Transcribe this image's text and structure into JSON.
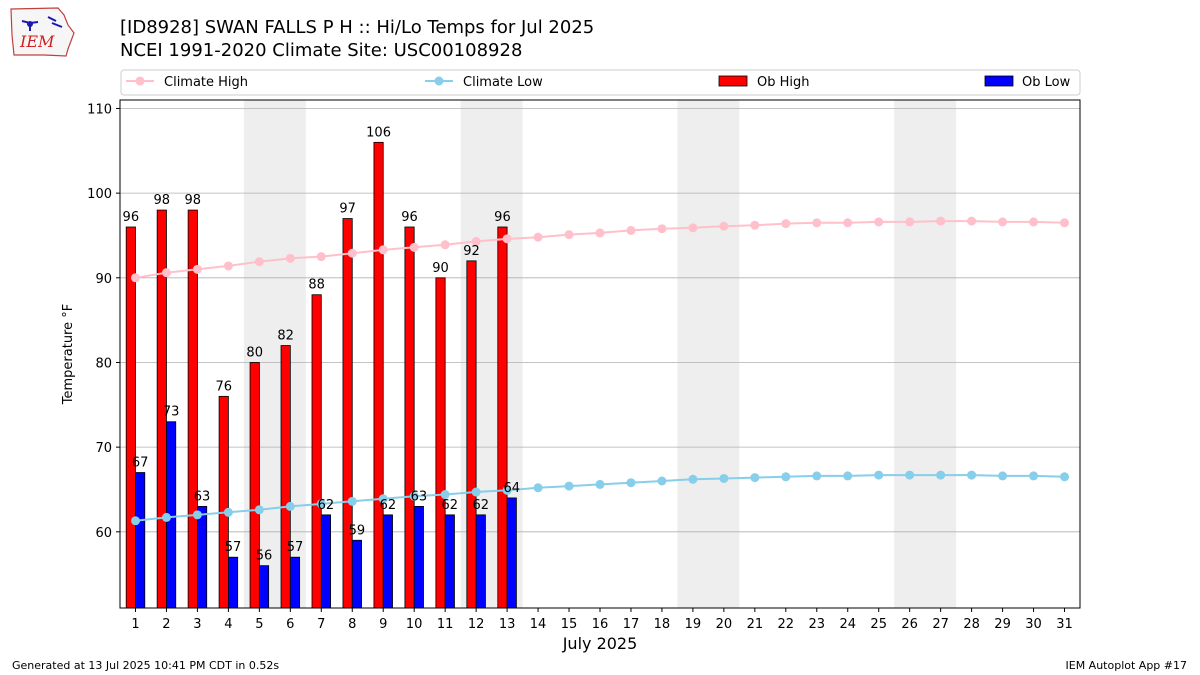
{
  "header": {
    "title_line1": "[ID8928] SWAN FALLS P H :: Hi/Lo Temps for Jul 2025",
    "title_line2": "NCEI 1991-2020 Climate Site: USC00108928",
    "logo_text": "IEM"
  },
  "footer": {
    "generated": "Generated at 13 Jul 2025 10:41 PM CDT in 0.52s",
    "app": "IEM Autoplot App #17"
  },
  "colors": {
    "ob_high": "#ff0000",
    "ob_low": "#0000ff",
    "climate_high": "#ffc0cb",
    "climate_low": "#87ceeb",
    "weekend_shade": "#eeeeee",
    "grid": "#b0b0b0"
  },
  "chart_data": {
    "type": "bar",
    "xlabel": "July 2025",
    "ylabel": "Temperature °F",
    "ylim": [
      51,
      111
    ],
    "yticks": [
      60,
      70,
      80,
      90,
      100,
      110
    ],
    "x_days": [
      1,
      2,
      3,
      4,
      5,
      6,
      7,
      8,
      9,
      10,
      11,
      12,
      13,
      14,
      15,
      16,
      17,
      18,
      19,
      20,
      21,
      22,
      23,
      24,
      25,
      26,
      27,
      28,
      29,
      30,
      31
    ],
    "grid": "horizontal",
    "legend_position": "top",
    "weekend_spans": [
      [
        5,
        6
      ],
      [
        12,
        13
      ],
      [
        19,
        20
      ],
      [
        26,
        27
      ]
    ],
    "series": [
      {
        "name": "Climate High",
        "kind": "line",
        "values": [
          90.0,
          90.6,
          91.0,
          91.4,
          91.9,
          92.3,
          92.5,
          92.9,
          93.3,
          93.6,
          93.9,
          94.3,
          94.6,
          94.8,
          95.1,
          95.3,
          95.6,
          95.8,
          95.9,
          96.1,
          96.2,
          96.4,
          96.5,
          96.5,
          96.6,
          96.6,
          96.7,
          96.7,
          96.6,
          96.6,
          96.5
        ]
      },
      {
        "name": "Climate Low",
        "kind": "line",
        "values": [
          61.3,
          61.7,
          62.0,
          62.3,
          62.6,
          63.0,
          63.3,
          63.6,
          63.9,
          64.2,
          64.4,
          64.7,
          64.9,
          65.2,
          65.4,
          65.6,
          65.8,
          66.0,
          66.2,
          66.3,
          66.4,
          66.5,
          66.6,
          66.6,
          66.7,
          66.7,
          66.7,
          66.7,
          66.6,
          66.6,
          66.5
        ]
      },
      {
        "name": "Ob High",
        "kind": "bar",
        "values": [
          96,
          98,
          98,
          76,
          80,
          82,
          88,
          97,
          106,
          96,
          90,
          92,
          96
        ]
      },
      {
        "name": "Ob Low",
        "kind": "bar",
        "values": [
          67,
          73,
          63,
          57,
          56,
          57,
          62,
          59,
          62,
          63,
          62,
          62,
          64
        ]
      }
    ]
  }
}
